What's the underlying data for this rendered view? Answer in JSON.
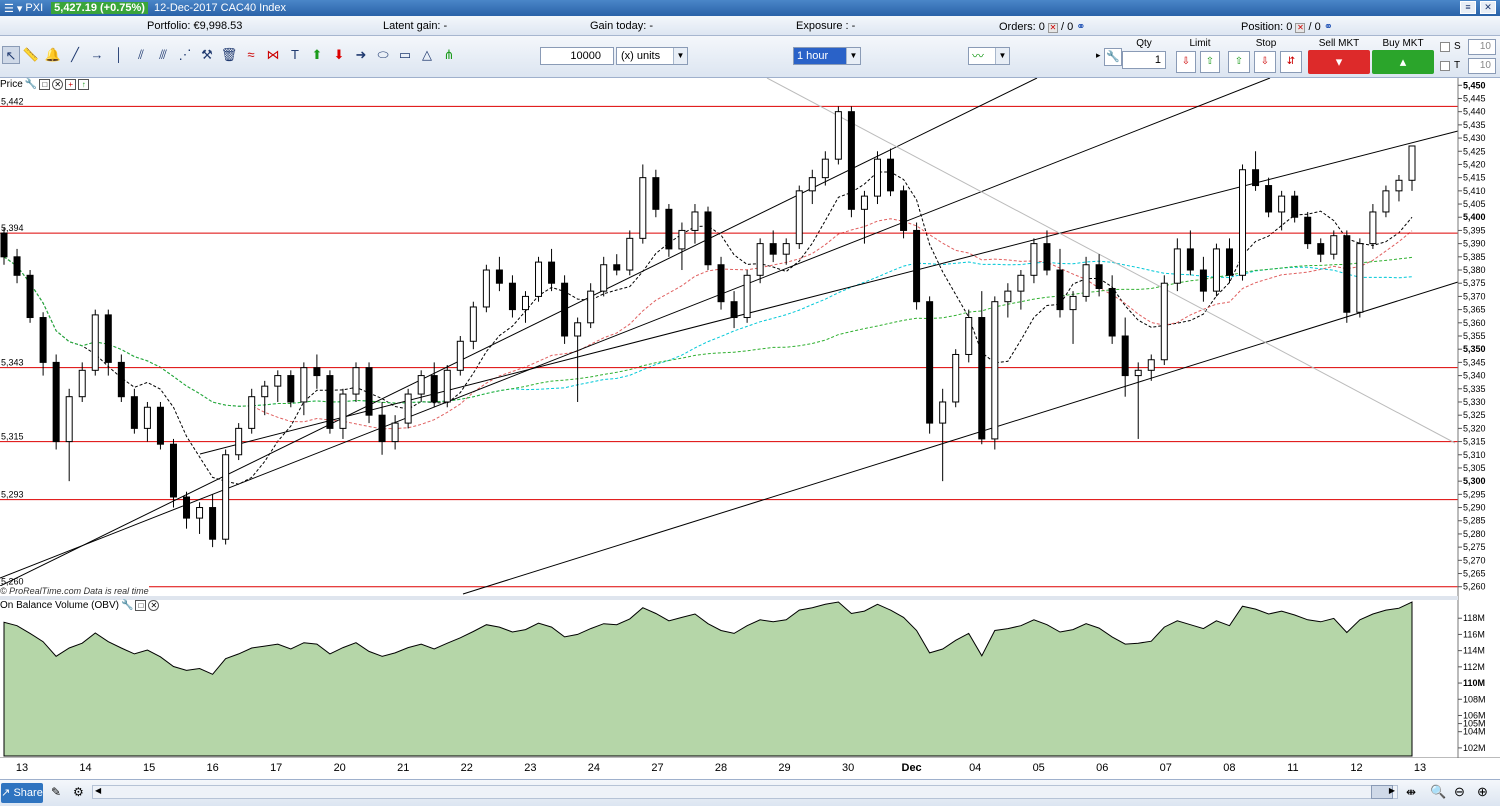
{
  "titlebar": {
    "symbol": "PXI",
    "price": "5,427.19 (+0.75%)",
    "instrument": "12-Dec-2017 CAC40 Index"
  },
  "stats": {
    "portfolio": "Portfolio: €9,998.53",
    "latent_gain": "Latent gain: -",
    "gain_today": "Gain today: -",
    "exposure": "Exposure : -",
    "orders": "Orders: 0",
    "orders_b": "/ 0",
    "position": "Position: 0",
    "position_b": "/ 0"
  },
  "toolbar": {
    "units_value": "10000",
    "units_label": "(x) units",
    "timeframe": "1 hour"
  },
  "deal_panel": {
    "qty_label": "Qty",
    "qty_value": "1",
    "limit_label": "Limit",
    "stop_label": "Stop",
    "sell_label": "Sell MKT",
    "buy_label": "Buy MKT",
    "s_label": "S",
    "s_value": "10",
    "t_label": "T",
    "t_value": "10"
  },
  "price_panel": {
    "label": "Price",
    "watermark": "© ProRealTime.com  Data is real time",
    "hline_labels": [
      "5,442",
      "5,394",
      "5,343",
      "5,315",
      "5,293",
      "5,260"
    ],
    "axis_ticks": [
      "5,450",
      "5,445",
      "5,440",
      "5,435",
      "5,430",
      "5,425",
      "5,420",
      "5,415",
      "5,410",
      "5,405",
      "5,400",
      "5,395",
      "5,390",
      "5,385",
      "5,380",
      "5,375",
      "5,370",
      "5,365",
      "5,360",
      "5,355",
      "5,350",
      "5,345",
      "5,340",
      "5,335",
      "5,330",
      "5,325",
      "5,320",
      "5,315",
      "5,310",
      "5,305",
      "5,300",
      "5,295",
      "5,290",
      "5,285",
      "5,280",
      "5,275",
      "5,270",
      "5,265",
      "5,260"
    ]
  },
  "obv_panel": {
    "label": "On Balance Volume (OBV)",
    "axis_ticks": [
      "118M",
      "116M",
      "114M",
      "112M",
      "110M",
      "108M",
      "106M",
      "105M",
      "104M",
      "102M"
    ]
  },
  "x_axis": {
    "labels": [
      "13",
      "14",
      "15",
      "16",
      "17",
      "20",
      "21",
      "22",
      "23",
      "24",
      "27",
      "28",
      "29",
      "30",
      "Dec",
      "04",
      "05",
      "06",
      "07",
      "08",
      "11",
      "12",
      "13"
    ]
  },
  "bottombar": {
    "share_label": "Share"
  },
  "chart_data": {
    "type": "candlestick",
    "title": "12-Dec-2017 CAC40 Index",
    "timeframe": "1 hour",
    "ylim": [
      5258,
      5452
    ],
    "horizontal_levels": [
      5442,
      5394,
      5343,
      5315,
      5293,
      5260
    ],
    "candles": [
      [
        5394,
        5396,
        5382,
        5385
      ],
      [
        5385,
        5388,
        5375,
        5378
      ],
      [
        5378,
        5380,
        5360,
        5362
      ],
      [
        5362,
        5364,
        5340,
        5345
      ],
      [
        5345,
        5348,
        5312,
        5315
      ],
      [
        5315,
        5335,
        5300,
        5332
      ],
      [
        5332,
        5345,
        5330,
        5342
      ],
      [
        5342,
        5365,
        5340,
        5363
      ],
      [
        5363,
        5365,
        5340,
        5345
      ],
      [
        5345,
        5348,
        5330,
        5332
      ],
      [
        5332,
        5335,
        5318,
        5320
      ],
      [
        5320,
        5330,
        5315,
        5328
      ],
      [
        5328,
        5330,
        5312,
        5314
      ],
      [
        5314,
        5316,
        5290,
        5294
      ],
      [
        5294,
        5296,
        5282,
        5286
      ],
      [
        5286,
        5292,
        5280,
        5290
      ],
      [
        5290,
        5295,
        5275,
        5278
      ],
      [
        5278,
        5312,
        5276,
        5310
      ],
      [
        5310,
        5322,
        5308,
        5320
      ],
      [
        5320,
        5335,
        5318,
        5332
      ],
      [
        5332,
        5338,
        5325,
        5336
      ],
      [
        5336,
        5342,
        5330,
        5340
      ],
      [
        5340,
        5342,
        5328,
        5330
      ],
      [
        5330,
        5345,
        5325,
        5343
      ],
      [
        5343,
        5348,
        5335,
        5340
      ],
      [
        5340,
        5342,
        5318,
        5320
      ],
      [
        5320,
        5335,
        5316,
        5333
      ],
      [
        5333,
        5345,
        5330,
        5343
      ],
      [
        5343,
        5345,
        5322,
        5325
      ],
      [
        5325,
        5330,
        5310,
        5315
      ],
      [
        5315,
        5325,
        5312,
        5322
      ],
      [
        5322,
        5335,
        5320,
        5333
      ],
      [
        5333,
        5342,
        5330,
        5340
      ],
      [
        5340,
        5345,
        5328,
        5330
      ],
      [
        5330,
        5344,
        5328,
        5342
      ],
      [
        5342,
        5355,
        5340,
        5353
      ],
      [
        5353,
        5368,
        5350,
        5366
      ],
      [
        5366,
        5382,
        5364,
        5380
      ],
      [
        5380,
        5385,
        5372,
        5375
      ],
      [
        5375,
        5378,
        5362,
        5365
      ],
      [
        5365,
        5372,
        5360,
        5370
      ],
      [
        5370,
        5385,
        5368,
        5383
      ],
      [
        5383,
        5388,
        5372,
        5375
      ],
      [
        5375,
        5378,
        5352,
        5355
      ],
      [
        5355,
        5362,
        5330,
        5360
      ],
      [
        5360,
        5375,
        5358,
        5372
      ],
      [
        5372,
        5385,
        5370,
        5382
      ],
      [
        5382,
        5386,
        5378,
        5380
      ],
      [
        5380,
        5395,
        5378,
        5392
      ],
      [
        5392,
        5420,
        5390,
        5415
      ],
      [
        5415,
        5418,
        5400,
        5403
      ],
      [
        5403,
        5405,
        5385,
        5388
      ],
      [
        5388,
        5398,
        5380,
        5395
      ],
      [
        5395,
        5405,
        5390,
        5402
      ],
      [
        5402,
        5404,
        5380,
        5382
      ],
      [
        5382,
        5385,
        5365,
        5368
      ],
      [
        5368,
        5372,
        5358,
        5362
      ],
      [
        5362,
        5380,
        5360,
        5378
      ],
      [
        5378,
        5392,
        5375,
        5390
      ],
      [
        5390,
        5395,
        5383,
        5386
      ],
      [
        5386,
        5392,
        5382,
        5390
      ],
      [
        5390,
        5412,
        5388,
        5410
      ],
      [
        5410,
        5418,
        5405,
        5415
      ],
      [
        5415,
        5425,
        5412,
        5422
      ],
      [
        5422,
        5442,
        5420,
        5440
      ],
      [
        5440,
        5442,
        5400,
        5403
      ],
      [
        5403,
        5410,
        5390,
        5408
      ],
      [
        5408,
        5425,
        5405,
        5422
      ],
      [
        5422,
        5426,
        5408,
        5410
      ],
      [
        5410,
        5412,
        5392,
        5395
      ],
      [
        5395,
        5398,
        5365,
        5368
      ],
      [
        5368,
        5370,
        5318,
        5322
      ],
      [
        5322,
        5335,
        5300,
        5330
      ],
      [
        5330,
        5350,
        5328,
        5348
      ],
      [
        5348,
        5365,
        5345,
        5362
      ],
      [
        5362,
        5372,
        5314,
        5316
      ],
      [
        5316,
        5370,
        5312,
        5368
      ],
      [
        5368,
        5375,
        5362,
        5372
      ],
      [
        5372,
        5380,
        5365,
        5378
      ],
      [
        5378,
        5392,
        5375,
        5390
      ],
      [
        5390,
        5395,
        5378,
        5380
      ],
      [
        5380,
        5388,
        5362,
        5365
      ],
      [
        5365,
        5372,
        5352,
        5370
      ],
      [
        5370,
        5385,
        5368,
        5382
      ],
      [
        5382,
        5386,
        5370,
        5373
      ],
      [
        5373,
        5378,
        5352,
        5355
      ],
      [
        5355,
        5362,
        5332,
        5340
      ],
      [
        5340,
        5345,
        5316,
        5342
      ],
      [
        5342,
        5348,
        5338,
        5346
      ],
      [
        5346,
        5378,
        5344,
        5375
      ],
      [
        5375,
        5392,
        5372,
        5388
      ],
      [
        5388,
        5395,
        5378,
        5380
      ],
      [
        5380,
        5385,
        5368,
        5372
      ],
      [
        5372,
        5390,
        5370,
        5388
      ],
      [
        5388,
        5392,
        5375,
        5378
      ],
      [
        5378,
        5420,
        5376,
        5418
      ],
      [
        5418,
        5425,
        5410,
        5412
      ],
      [
        5412,
        5415,
        5400,
        5402
      ],
      [
        5402,
        5410,
        5395,
        5408
      ],
      [
        5408,
        5410,
        5398,
        5400
      ],
      [
        5400,
        5402,
        5388,
        5390
      ],
      [
        5390,
        5392,
        5383,
        5386
      ],
      [
        5386,
        5395,
        5384,
        5393
      ],
      [
        5393,
        5395,
        5360,
        5364
      ],
      [
        5364,
        5392,
        5362,
        5390
      ],
      [
        5390,
        5405,
        5388,
        5402
      ],
      [
        5402,
        5412,
        5400,
        5410
      ],
      [
        5410,
        5416,
        5406,
        5414
      ],
      [
        5414,
        5427,
        5410,
        5427
      ]
    ],
    "obv_ylim": [
      101,
      120
    ]
  }
}
